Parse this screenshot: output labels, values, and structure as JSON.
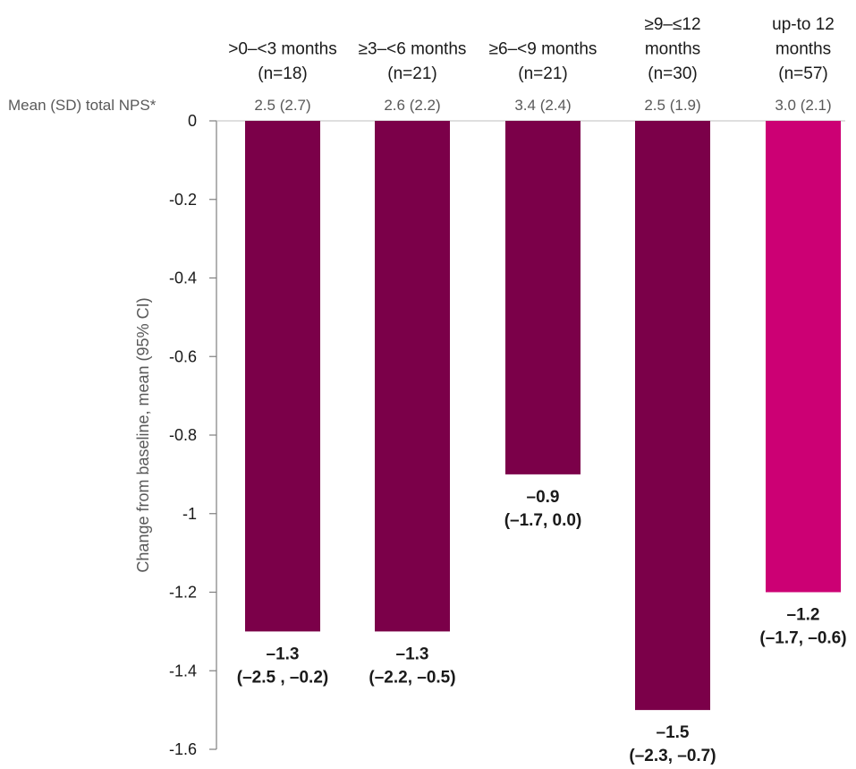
{
  "chart_data": {
    "type": "bar",
    "categories": [
      [
        "&gt;0–&lt;3 months",
        "(n=18)"
      ],
      [
        "≥3–&lt;6 months",
        "(n=21)"
      ],
      [
        "≥6–&lt;9 months",
        "(n=21)"
      ],
      [
        "≥9–≤12",
        "months",
        "(n=30)"
      ],
      [
        "up-to 12",
        "months",
        "(n=57)"
      ]
    ],
    "values": [
      -1.3,
      -1.3,
      -0.9,
      -1.5,
      -1.2
    ],
    "ci_labels": [
      "(–2.5 , –0.2)",
      "(–2.2, –0.5)",
      "(–1.7, 0.0)",
      "(–2.3, –0.7)",
      "(–1.7, –0.6)"
    ],
    "value_labels": [
      "–1.3",
      "–1.3",
      "–0.9",
      "–1.5",
      "–1.2"
    ],
    "mean_sd_row_label": "Mean (SD) total NPS*",
    "mean_sd_values": [
      "2.5 (2.7)",
      "2.6 (2.2)",
      "3.4 (2.4)",
      "2.5 (1.9)",
      "3.0 (2.1)"
    ],
    "ylabel": "Change from baseline, mean (95% CI)",
    "ylim": [
      -1.6,
      0
    ],
    "yticks": [
      0,
      -0.2,
      -0.4,
      -0.6,
      -0.8,
      -1,
      -1.2,
      -1.4,
      -1.6
    ],
    "ytick_labels": [
      "0",
      "-0.2",
      "-0.4",
      "-0.6",
      "-0.8",
      "-1",
      "-1.2",
      "-1.4",
      "-1.6"
    ],
    "colors": [
      "#7b0049",
      "#7b0049",
      "#7b0049",
      "#7b0049",
      "#cc0074"
    ]
  }
}
